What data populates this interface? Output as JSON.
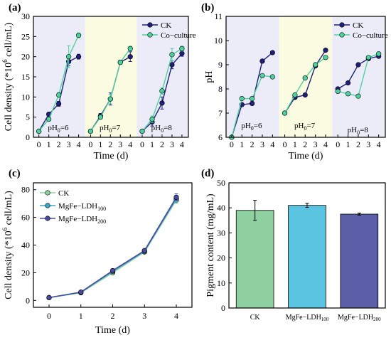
{
  "colors": {
    "ck": "#1f1f7a",
    "coculture": "#4fd1a0",
    "ldh100": "#3aa7c9",
    "ldh200": "#4a4a9e",
    "bar_ck": "#8fd0a0",
    "bar_ldh100": "#5bc4e0",
    "bar_ldh200": "#5a5fa8",
    "bg_ph6": "#ececf8",
    "bg_ph7": "#fbfbe2",
    "bg_ph8": "#ececf8"
  },
  "chart_data": [
    {
      "panel": "(a)",
      "type": "line",
      "ylabel_main": "Cell density (*10",
      "ylabel_sup": "6",
      "ylabel_tail": " cell/mL)",
      "xlabel": "Time (d)",
      "ylim": [
        0,
        30
      ],
      "yticks": [
        0,
        5,
        10,
        15,
        20,
        25,
        30
      ],
      "x_ticks": [
        0,
        1,
        2,
        3,
        4
      ],
      "groups": [
        "6",
        "7",
        "8"
      ],
      "series": [
        {
          "name": "CK",
          "groups": [
            [
              1.5,
              5.7,
              8.3,
              18.8,
              20.0
            ],
            [
              1.5,
              5.3,
              9.5,
              18.6,
              20.0
            ],
            [
              1.5,
              3.8,
              8.5,
              18.0,
              20.8
            ]
          ],
          "err": [
            [
              0.3,
              0.5,
              0.6,
              1.0,
              0.6
            ],
            [
              0.3,
              0.6,
              1.5,
              0.5,
              1.2
            ],
            [
              0.3,
              1.0,
              1.5,
              1.0,
              0.7
            ]
          ]
        },
        {
          "name": "Co−culture",
          "groups": [
            [
              1.5,
              4.5,
              10.5,
              20.0,
              25.3
            ],
            [
              1.5,
              5.0,
              9.5,
              18.6,
              22.0
            ],
            [
              1.5,
              4.5,
              11.5,
              20.5,
              22.0
            ]
          ],
          "err": [
            [
              0.3,
              0.5,
              0.6,
              2.7,
              0.6
            ],
            [
              0.3,
              0.5,
              1.2,
              0.5,
              0.6
            ],
            [
              0.3,
              0.8,
              0.8,
              1.5,
              0.6
            ]
          ]
        }
      ],
      "annotations": [
        "pH",
        "0",
        "=6",
        "=7",
        "=8"
      ]
    },
    {
      "panel": "(b)",
      "type": "line",
      "ylabel": "pH",
      "xlabel": "Time (d)",
      "ylim": [
        6,
        11
      ],
      "yticks": [
        6,
        7,
        8,
        9,
        10,
        11
      ],
      "x_ticks": [
        0,
        1,
        2,
        3,
        4
      ],
      "groups": [
        "6",
        "7",
        "8"
      ],
      "series": [
        {
          "name": "CK",
          "groups": [
            [
              6.0,
              7.35,
              7.4,
              9.15,
              9.5
            ],
            [
              7.0,
              7.65,
              7.75,
              8.95,
              9.6
            ],
            [
              8.0,
              8.25,
              9.0,
              9.25,
              9.35
            ]
          ]
        },
        {
          "name": "Co−culture",
          "groups": [
            [
              6.0,
              7.6,
              7.6,
              8.55,
              8.5
            ],
            [
              7.0,
              7.75,
              8.45,
              9.0,
              9.3
            ],
            [
              7.9,
              7.8,
              7.7,
              9.3,
              9.45
            ]
          ]
        }
      ]
    },
    {
      "panel": "(c)",
      "type": "line",
      "ylabel_main": "Cell density (*10",
      "ylabel_sup": "6",
      "ylabel_tail": " cell/mL)",
      "xlabel": "Time (d)",
      "ylim": [
        -5,
        85
      ],
      "yticks": [
        0,
        20,
        40,
        60,
        80
      ],
      "x": [
        0,
        1,
        2,
        3,
        4
      ],
      "series": [
        {
          "name": "CK",
          "values": [
            2,
            5.5,
            20,
            35,
            72.5
          ],
          "err": [
            0.8,
            1.0,
            1.2,
            1.2,
            2.5
          ]
        },
        {
          "name": "MgFe−LDH",
          "sub": "100",
          "values": [
            2,
            5.8,
            21,
            35.5,
            73.5
          ],
          "err": [
            0.8,
            1.0,
            1.2,
            1.2,
            2.5
          ]
        },
        {
          "name": "MgFe−LDH",
          "sub": "200",
          "values": [
            2,
            6,
            21.5,
            36,
            74.5
          ],
          "err": [
            0.8,
            1.0,
            1.2,
            1.2,
            2.5
          ]
        }
      ]
    },
    {
      "panel": "(d)",
      "type": "bar",
      "ylabel": "Pigment content (mg/mL)",
      "ylim": [
        0,
        50
      ],
      "yticks": [
        0,
        10,
        20,
        30,
        40,
        50
      ],
      "categories": [
        {
          "name": "CK",
          "sub": ""
        },
        {
          "name": "MgFe−LDH",
          "sub": "100"
        },
        {
          "name": "MgFe−LDH",
          "sub": "200"
        }
      ],
      "values": [
        39,
        41,
        37.5
      ],
      "err": [
        4,
        0.8,
        0.4
      ]
    }
  ]
}
